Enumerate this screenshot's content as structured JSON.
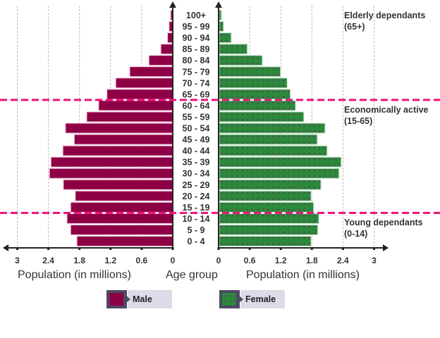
{
  "chart_data": {
    "type": "bar",
    "subtype": "population-pyramid",
    "categories": [
      "100+",
      "95 - 99",
      "90 - 94",
      "85 - 89",
      "80 - 84",
      "75 - 79",
      "70 - 74",
      "65 - 69",
      "60 - 64",
      "55 - 59",
      "50 - 54",
      "45 - 49",
      "40 - 44",
      "35 - 39",
      "30 - 34",
      "25 - 29",
      "20 - 24",
      "15 - 19",
      "10 - 14",
      "5 - 9",
      "0 - 4"
    ],
    "series": [
      {
        "name": "Male",
        "side": "left",
        "color": "#8e0046",
        "values": [
          0.04,
          0.07,
          0.1,
          0.23,
          0.46,
          0.83,
          1.1,
          1.27,
          1.43,
          1.66,
          2.07,
          1.9,
          2.12,
          2.35,
          2.38,
          2.11,
          1.88,
          1.97,
          2.04,
          1.97,
          1.85
        ]
      },
      {
        "name": "Female",
        "side": "right",
        "color": "#2a8a3a",
        "pattern": "dots",
        "values": [
          0.04,
          0.08,
          0.23,
          0.54,
          0.83,
          1.18,
          1.31,
          1.37,
          1.47,
          1.63,
          2.04,
          1.89,
          2.08,
          2.35,
          2.31,
          1.96,
          1.77,
          1.82,
          1.92,
          1.9,
          1.77
        ]
      }
    ],
    "x_ticks_left": [
      "3",
      "2.4",
      "1.8",
      "1.2",
      "0.6",
      "0"
    ],
    "x_ticks_right": [
      "0",
      "0.6",
      "1.2",
      "1.8",
      "2.4",
      "3"
    ],
    "tick_values": [
      0,
      0.6,
      1.2,
      1.8,
      2.4,
      3
    ],
    "xlim": [
      0,
      3
    ],
    "xlabel_left": "Population (in millions)",
    "xlabel_center": "Age group",
    "xlabel_right": "Population (in millions)",
    "grid": true,
    "annotations": [
      {
        "lines": [
          "Elderly dependants",
          "(65+)"
        ],
        "boundary_below_category": "65 - 69"
      },
      {
        "lines": [
          "Economically active",
          "(15-65)"
        ],
        "boundary_below_category": "15 - 19"
      },
      {
        "lines": [
          "Young dependants",
          "(0-14)"
        ]
      }
    ],
    "divider_color": "#ee1177",
    "legend": [
      {
        "label": "Male",
        "series": "Male"
      },
      {
        "label": "Female",
        "series": "Female"
      }
    ],
    "legend_position": "bottom"
  }
}
